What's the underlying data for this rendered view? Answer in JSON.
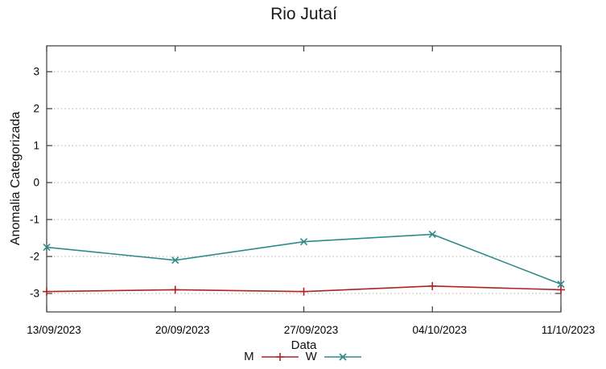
{
  "chart_data": {
    "type": "line",
    "title": "Rio Jutaí",
    "xlabel": "Data",
    "ylabel": "Anomalia Categorizada",
    "x_tick_labels": [
      "13/09/2023",
      "20/09/2023",
      "27/09/2023",
      "04/10/2023",
      "11/10/2023"
    ],
    "y_ticks": [
      3,
      2,
      1,
      0,
      -1,
      -2,
      -3
    ],
    "ylim": [
      -3.5,
      3.7
    ],
    "grid": "horizontal-dotted",
    "legend_position": "bottom-center",
    "series": [
      {
        "name": "M",
        "color": "#b22222",
        "marker": "plus",
        "values": [
          -2.95,
          -2.9,
          -2.95,
          -2.8,
          -2.9
        ]
      },
      {
        "name": "W",
        "color": "#2e8b89",
        "marker": "cross",
        "values": [
          -1.75,
          -2.1,
          -1.6,
          -1.4,
          -2.75
        ]
      }
    ],
    "colors": {
      "grid": "#b0b0b0",
      "border": "#3a3a3a",
      "text": "#000000"
    }
  }
}
